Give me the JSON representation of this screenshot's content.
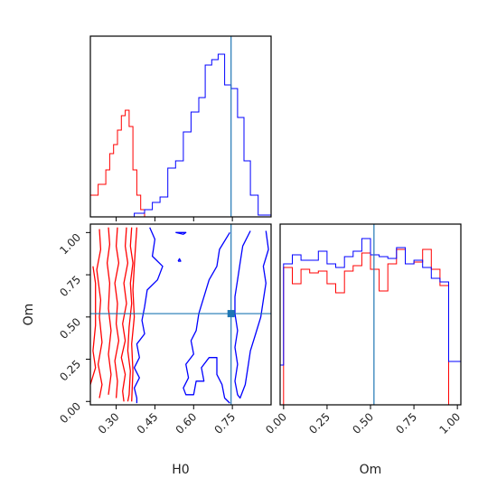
{
  "chart_data": {
    "type": "corner",
    "parameters": [
      "H0",
      "Om"
    ],
    "truths": {
      "H0": 0.745,
      "Om": 0.52
    },
    "colors": {
      "series_a": "#ff0000",
      "series_b": "#0000ff",
      "truth": "#1f77b4"
    },
    "panels": {
      "h0_hist": {
        "xlim": [
          0.2,
          0.9
        ],
        "bin_edges": [
          0.2,
          0.23,
          0.26,
          0.275,
          0.29,
          0.305,
          0.32,
          0.335,
          0.35,
          0.365,
          0.38,
          0.395,
          0.41,
          0.44,
          0.9
        ],
        "series_a": [
          0.12,
          0.18,
          0.26,
          0.35,
          0.4,
          0.48,
          0.56,
          0.59,
          0.5,
          0.26,
          0.12,
          0.04,
          0.0,
          0.0
        ],
        "bin_edges_b": [
          0.2,
          0.37,
          0.41,
          0.44,
          0.47,
          0.5,
          0.53,
          0.56,
          0.59,
          0.62,
          0.645,
          0.67,
          0.695,
          0.72,
          0.745,
          0.77,
          0.795,
          0.82,
          0.85,
          0.9
        ],
        "series_b": [
          0.0,
          0.02,
          0.04,
          0.08,
          0.11,
          0.27,
          0.31,
          0.47,
          0.58,
          0.66,
          0.84,
          0.87,
          0.9,
          0.73,
          0.71,
          0.55,
          0.31,
          0.12,
          0.01
        ]
      },
      "om_hist": {
        "xlim": [
          -0.02,
          1.02
        ],
        "bin_edges": [
          -0.02,
          0.0,
          0.05,
          0.1,
          0.15,
          0.2,
          0.25,
          0.3,
          0.35,
          0.4,
          0.45,
          0.5,
          0.55,
          0.6,
          0.65,
          0.7,
          0.75,
          0.8,
          0.85,
          0.9,
          0.95,
          1.0,
          1.02
        ],
        "series_a": [
          0.0,
          0.76,
          0.67,
          0.75,
          0.73,
          0.74,
          0.67,
          0.62,
          0.74,
          0.77,
          0.84,
          0.75,
          0.63,
          0.78,
          0.86,
          0.78,
          0.79,
          0.86,
          0.75,
          0.66,
          0.0,
          0.0
        ],
        "series_b": [
          0.22,
          0.78,
          0.83,
          0.8,
          0.8,
          0.85,
          0.78,
          0.76,
          0.82,
          0.85,
          0.92,
          0.83,
          0.82,
          0.81,
          0.87,
          0.78,
          0.8,
          0.76,
          0.7,
          0.68,
          0.24,
          0.24
        ]
      },
      "joint": {
        "xlim": [
          0.2,
          0.9
        ],
        "ylim": [
          -0.02,
          1.05
        ],
        "series_a_contours": [
          [
            [
              0.21,
              0.8
            ],
            [
              0.22,
              0.7
            ],
            [
              0.22,
              0.45
            ],
            [
              0.21,
              0.3
            ],
            [
              0.22,
              0.2
            ],
            [
              0.2,
              0.1
            ]
          ],
          [
            [
              0.235,
              1.02
            ],
            [
              0.24,
              0.9
            ],
            [
              0.225,
              0.78
            ],
            [
              0.24,
              0.6
            ],
            [
              0.235,
              0.5
            ],
            [
              0.245,
              0.35
            ],
            [
              0.23,
              0.22
            ],
            [
              0.245,
              0.1
            ],
            [
              0.235,
              0.02
            ]
          ],
          [
            [
              0.27,
              1.03
            ],
            [
              0.275,
              0.93
            ],
            [
              0.265,
              0.82
            ],
            [
              0.275,
              0.7
            ],
            [
              0.27,
              0.55
            ],
            [
              0.28,
              0.42
            ],
            [
              0.27,
              0.28
            ],
            [
              0.28,
              0.16
            ],
            [
              0.27,
              0.04
            ]
          ],
          [
            [
              0.305,
              1.03
            ],
            [
              0.3,
              0.92
            ],
            [
              0.31,
              0.82
            ],
            [
              0.295,
              0.7
            ],
            [
              0.305,
              0.58
            ],
            [
              0.3,
              0.46
            ],
            [
              0.31,
              0.36
            ],
            [
              0.295,
              0.24
            ],
            [
              0.305,
              0.12
            ],
            [
              0.3,
              0.02
            ]
          ],
          [
            [
              0.34,
              1.03
            ],
            [
              0.335,
              0.92
            ],
            [
              0.345,
              0.82
            ],
            [
              0.33,
              0.7
            ],
            [
              0.34,
              0.58
            ],
            [
              0.325,
              0.46
            ],
            [
              0.335,
              0.36
            ],
            [
              0.32,
              0.26
            ],
            [
              0.335,
              0.16
            ],
            [
              0.325,
              0.06
            ],
            [
              0.33,
              0.0
            ]
          ],
          [
            [
              0.36,
              1.03
            ],
            [
              0.355,
              0.92
            ],
            [
              0.365,
              0.82
            ],
            [
              0.355,
              0.7
            ],
            [
              0.36,
              0.58
            ],
            [
              0.35,
              0.44
            ],
            [
              0.345,
              0.3
            ],
            [
              0.355,
              0.18
            ],
            [
              0.35,
              0.04
            ],
            [
              0.345,
              0.0
            ]
          ],
          [
            [
              0.38,
              1.03
            ],
            [
              0.375,
              0.92
            ],
            [
              0.37,
              0.8
            ],
            [
              0.365,
              0.66
            ],
            [
              0.37,
              0.5
            ],
            [
              0.36,
              0.34
            ],
            [
              0.365,
              0.18
            ],
            [
              0.36,
              0.0
            ]
          ]
        ],
        "series_b_contours": [
          [
            [
              0.43,
              1.03
            ],
            [
              0.45,
              0.96
            ],
            [
              0.44,
              0.86
            ],
            [
              0.48,
              0.8
            ],
            [
              0.46,
              0.72
            ],
            [
              0.42,
              0.66
            ],
            [
              0.41,
              0.56
            ],
            [
              0.4,
              0.48
            ],
            [
              0.41,
              0.4
            ],
            [
              0.38,
              0.34
            ],
            [
              0.39,
              0.26
            ],
            [
              0.37,
              0.2
            ],
            [
              0.39,
              0.14
            ],
            [
              0.37,
              0.08
            ],
            [
              0.38,
              0.02
            ],
            [
              0.38,
              -0.01
            ]
          ],
          [
            [
              0.74,
              1.0
            ],
            [
              0.7,
              0.9
            ],
            [
              0.69,
              0.8
            ],
            [
              0.66,
              0.72
            ],
            [
              0.64,
              0.62
            ],
            [
              0.62,
              0.52
            ],
            [
              0.61,
              0.42
            ],
            [
              0.59,
              0.36
            ],
            [
              0.6,
              0.28
            ],
            [
              0.57,
              0.22
            ],
            [
              0.58,
              0.14
            ],
            [
              0.56,
              0.08
            ],
            [
              0.57,
              0.04
            ],
            [
              0.6,
              0.04
            ],
            [
              0.61,
              0.12
            ],
            [
              0.64,
              0.12
            ],
            [
              0.63,
              0.2
            ],
            [
              0.66,
              0.26
            ],
            [
              0.69,
              0.26
            ],
            [
              0.69,
              0.16
            ],
            [
              0.71,
              0.1
            ],
            [
              0.72,
              0.02
            ],
            [
              0.74,
              -0.01
            ]
          ],
          [
            [
              0.82,
              1.01
            ],
            [
              0.79,
              0.92
            ],
            [
              0.78,
              0.82
            ],
            [
              0.77,
              0.72
            ],
            [
              0.76,
              0.62
            ],
            [
              0.76,
              0.52
            ],
            [
              0.77,
              0.42
            ],
            [
              0.76,
              0.32
            ],
            [
              0.77,
              0.22
            ],
            [
              0.76,
              0.12
            ],
            [
              0.77,
              0.04
            ],
            [
              0.78,
              0.02
            ],
            [
              0.8,
              0.1
            ],
            [
              0.81,
              0.2
            ],
            [
              0.82,
              0.3
            ],
            [
              0.84,
              0.4
            ],
            [
              0.86,
              0.5
            ],
            [
              0.87,
              0.6
            ],
            [
              0.88,
              0.7
            ],
            [
              0.87,
              0.8
            ],
            [
              0.89,
              0.9
            ],
            [
              0.88,
              1.01
            ]
          ],
          [
            [
              0.53,
              1.0
            ],
            [
              0.56,
              0.99
            ],
            [
              0.57,
              1.0
            ],
            [
              0.53,
              1.0
            ]
          ],
          [
            [
              0.54,
              0.83
            ],
            [
              0.545,
              0.845
            ],
            [
              0.55,
              0.83
            ],
            [
              0.54,
              0.83
            ]
          ]
        ]
      }
    },
    "axes": {
      "joint_xticks": [
        {
          "v": 0.3,
          "label": "0.30"
        },
        {
          "v": 0.45,
          "label": "0.45"
        },
        {
          "v": 0.6,
          "label": "0.60"
        },
        {
          "v": 0.75,
          "label": "0.75"
        }
      ],
      "joint_yticks": [
        {
          "v": 0.0,
          "label": "0.00"
        },
        {
          "v": 0.25,
          "label": "0.25"
        },
        {
          "v": 0.5,
          "label": "0.50"
        },
        {
          "v": 0.75,
          "label": "0.75"
        },
        {
          "v": 1.0,
          "label": "1.00"
        }
      ],
      "om_xticks": [
        {
          "v": 0.0,
          "label": "0.00"
        },
        {
          "v": 0.25,
          "label": "0.25"
        },
        {
          "v": 0.5,
          "label": "0.50"
        },
        {
          "v": 0.75,
          "label": "0.75"
        },
        {
          "v": 1.0,
          "label": "1.00"
        }
      ],
      "xlabel_joint": "H0",
      "ylabel_joint": "Om",
      "xlabel_om": "Om"
    }
  }
}
